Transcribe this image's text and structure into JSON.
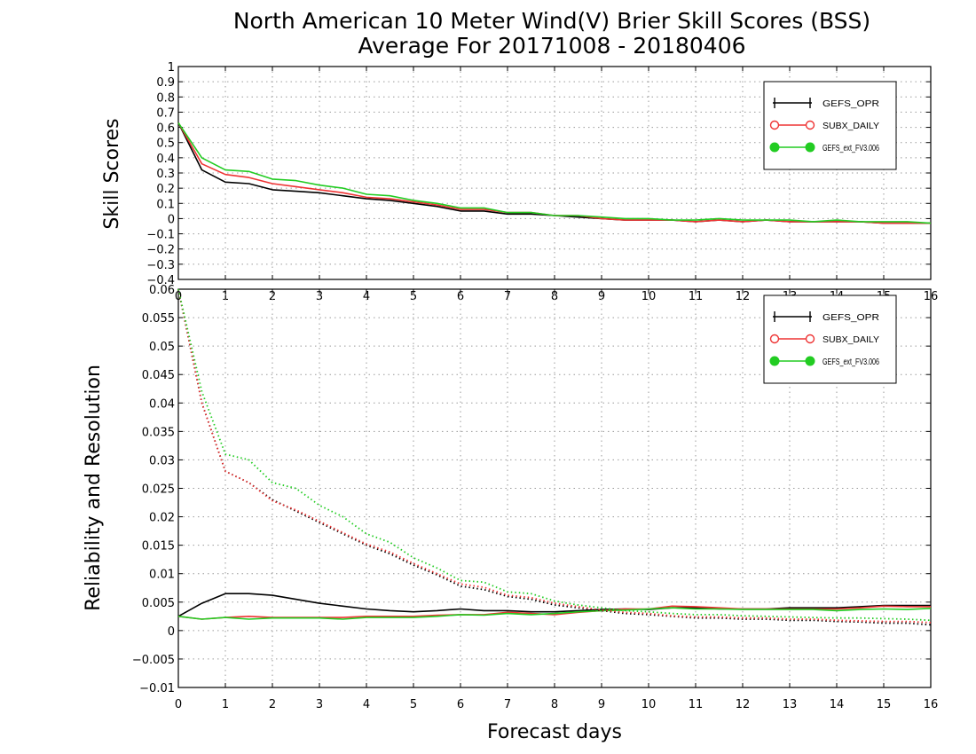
{
  "title": {
    "line1": "North American 10 Meter Wind(V) Brier Skill Scores (BSS)",
    "line2": "Average For 20171008 - 20180406"
  },
  "colors": {
    "GEFS_OPR": "#000000",
    "SUBX_DAILY": "#ee3333",
    "GEFS_ext_FV3.006": "#22cc22"
  },
  "chart_data": [
    {
      "type": "line",
      "ylabel": "Skill Scores",
      "xlim": [
        0,
        16
      ],
      "ylim": [
        -0.4,
        1
      ],
      "xticks": [
        0,
        1,
        2,
        3,
        4,
        5,
        6,
        7,
        8,
        9,
        10,
        11,
        12,
        13,
        14,
        15,
        16
      ],
      "yticks": [
        1,
        0.9,
        0.8,
        0.7,
        0.6,
        0.5,
        0.4,
        0.3,
        0.2,
        0.1,
        0,
        -0.1,
        -0.2,
        -0.3,
        -0.4
      ],
      "ytick_labels": [
        "1",
        "0.9",
        "0.8",
        "0.7",
        "0.6",
        "0.5",
        "0.4",
        "0.3",
        "0.2",
        "0.1",
        "0",
        "−0.1",
        "−0.2",
        "−0.3",
        "−0.4"
      ],
      "grid": true,
      "legend_position": "top-right",
      "x": [
        0,
        0.5,
        1,
        1.5,
        2,
        2.5,
        3,
        3.5,
        4,
        4.5,
        5,
        5.5,
        6,
        6.5,
        7,
        7.5,
        8,
        8.5,
        9,
        9.5,
        10,
        10.5,
        11,
        11.5,
        12,
        12.5,
        13,
        13.5,
        14,
        14.5,
        15,
        15.5,
        16
      ],
      "series": [
        {
          "name": "GEFS_OPR",
          "style": "solid",
          "marker": "plus",
          "values": [
            0.63,
            0.32,
            0.24,
            0.23,
            0.19,
            0.18,
            0.17,
            0.15,
            0.13,
            0.12,
            0.1,
            0.08,
            0.05,
            0.05,
            0.03,
            0.03,
            0.02,
            0.01,
            0.0,
            -0.01,
            -0.01,
            -0.01,
            -0.02,
            -0.01,
            -0.02,
            -0.01,
            -0.02,
            -0.02,
            -0.02,
            -0.02,
            -0.03,
            -0.03,
            -0.03
          ]
        },
        {
          "name": "SUBX_DAILY",
          "style": "solid",
          "marker": "circle-open",
          "values": [
            0.63,
            0.36,
            0.29,
            0.27,
            0.23,
            0.21,
            0.19,
            0.17,
            0.14,
            0.13,
            0.11,
            0.09,
            0.06,
            0.06,
            0.04,
            0.04,
            0.02,
            0.02,
            0.0,
            -0.01,
            -0.01,
            -0.01,
            -0.02,
            -0.01,
            -0.02,
            -0.01,
            -0.02,
            -0.02,
            -0.02,
            -0.02,
            -0.03,
            -0.03,
            -0.03
          ]
        },
        {
          "name": "GEFS_ext_FV3.006",
          "style": "solid",
          "marker": "circle-filled",
          "values": [
            0.63,
            0.4,
            0.32,
            0.31,
            0.26,
            0.25,
            0.22,
            0.2,
            0.16,
            0.15,
            0.12,
            0.1,
            0.07,
            0.07,
            0.04,
            0.04,
            0.02,
            0.02,
            0.01,
            0.0,
            0.0,
            -0.01,
            -0.01,
            0.0,
            -0.01,
            -0.01,
            -0.01,
            -0.02,
            -0.01,
            -0.02,
            -0.02,
            -0.02,
            -0.03
          ]
        }
      ]
    },
    {
      "type": "line",
      "ylabel": "Reliability and Resolution",
      "xlabel": "Forecast days",
      "xlim": [
        0,
        16
      ],
      "ylim": [
        -0.01,
        0.06
      ],
      "xticks": [
        0,
        1,
        2,
        3,
        4,
        5,
        6,
        7,
        8,
        9,
        10,
        11,
        12,
        13,
        14,
        15,
        16
      ],
      "yticks": [
        0.06,
        0.055,
        0.05,
        0.045,
        0.04,
        0.035,
        0.03,
        0.025,
        0.02,
        0.015,
        0.01,
        0.005,
        0,
        -0.005,
        -0.01
      ],
      "ytick_labels": [
        "0.06",
        "0.055",
        "0.05",
        "0.045",
        "0.04",
        "0.035",
        "0.03",
        "0.025",
        "0.02",
        "0.015",
        "0.01",
        "0.005",
        "0",
        "−0.005",
        "−0.01"
      ],
      "grid": true,
      "legend_position": "top-right",
      "x": [
        0,
        0.5,
        1,
        1.5,
        2,
        2.5,
        3,
        3.5,
        4,
        4.5,
        5,
        5.5,
        6,
        6.5,
        7,
        7.5,
        8,
        8.5,
        9,
        9.5,
        10,
        10.5,
        11,
        11.5,
        12,
        12.5,
        13,
        13.5,
        14,
        14.5,
        15,
        15.5,
        16
      ],
      "series": [
        {
          "name": "GEFS_OPR",
          "metric": "reliability",
          "style": "solid",
          "values": [
            0.0025,
            0.0048,
            0.0065,
            0.0065,
            0.0062,
            0.0055,
            0.0048,
            0.0043,
            0.0038,
            0.0035,
            0.0033,
            0.0035,
            0.0038,
            0.0035,
            0.0035,
            0.0033,
            0.0033,
            0.0035,
            0.0037,
            0.0038,
            0.0037,
            0.004,
            0.004,
            0.0038,
            0.0038,
            0.0038,
            0.004,
            0.004,
            0.004,
            0.0042,
            0.0044,
            0.0044,
            0.0044
          ]
        },
        {
          "name": "SUBX_DAILY",
          "metric": "reliability",
          "style": "solid",
          "values": [
            0.0025,
            0.002,
            0.0023,
            0.0025,
            0.0023,
            0.0023,
            0.0023,
            0.0023,
            0.0025,
            0.0025,
            0.0025,
            0.0027,
            0.0028,
            0.0028,
            0.0032,
            0.003,
            0.0028,
            0.0032,
            0.0035,
            0.0038,
            0.0038,
            0.0043,
            0.0042,
            0.004,
            0.0038,
            0.0038,
            0.0038,
            0.0038,
            0.0038,
            0.004,
            0.0043,
            0.0042,
            0.0042
          ]
        },
        {
          "name": "GEFS_ext_FV3.006",
          "metric": "reliability",
          "style": "solid",
          "values": [
            0.0025,
            0.002,
            0.0023,
            0.002,
            0.0022,
            0.0022,
            0.0022,
            0.002,
            0.0023,
            0.0023,
            0.0023,
            0.0025,
            0.0028,
            0.0027,
            0.003,
            0.0028,
            0.003,
            0.0033,
            0.0035,
            0.0036,
            0.0038,
            0.004,
            0.0038,
            0.0038,
            0.0037,
            0.0037,
            0.0037,
            0.0037,
            0.0035,
            0.0037,
            0.0038,
            0.0037,
            0.0039
          ]
        },
        {
          "name": "GEFS_OPR",
          "metric": "resolution",
          "style": "dotted",
          "values": [
            0.06,
            0.04,
            0.028,
            0.026,
            0.023,
            0.021,
            0.019,
            0.017,
            0.015,
            0.0135,
            0.0115,
            0.0098,
            0.0078,
            0.0072,
            0.006,
            0.0055,
            0.0045,
            0.004,
            0.0035,
            0.003,
            0.0028,
            0.0025,
            0.0022,
            0.0022,
            0.002,
            0.002,
            0.0018,
            0.0018,
            0.0016,
            0.0015,
            0.0013,
            0.0013,
            0.001
          ]
        },
        {
          "name": "SUBX_DAILY",
          "metric": "resolution",
          "style": "dotted",
          "values": [
            0.06,
            0.04,
            0.028,
            0.026,
            0.0228,
            0.0212,
            0.0192,
            0.0172,
            0.0152,
            0.0138,
            0.0118,
            0.01,
            0.0082,
            0.0076,
            0.0062,
            0.0058,
            0.0048,
            0.0042,
            0.0036,
            0.0032,
            0.003,
            0.0026,
            0.0024,
            0.0024,
            0.0022,
            0.0022,
            0.002,
            0.002,
            0.0018,
            0.0017,
            0.0016,
            0.0016,
            0.0014
          ]
        },
        {
          "name": "GEFS_ext_FV3.006",
          "metric": "resolution",
          "style": "dotted",
          "values": [
            0.06,
            0.042,
            0.031,
            0.03,
            0.026,
            0.025,
            0.022,
            0.02,
            0.017,
            0.0155,
            0.0128,
            0.011,
            0.0088,
            0.0085,
            0.0068,
            0.0065,
            0.0052,
            0.0045,
            0.004,
            0.0035,
            0.0033,
            0.003,
            0.0028,
            0.0028,
            0.0026,
            0.0025,
            0.0024,
            0.0023,
            0.0022,
            0.0022,
            0.0021,
            0.002,
            0.0018
          ]
        }
      ]
    }
  ],
  "legend": {
    "items": [
      {
        "label": "GEFS_OPR"
      },
      {
        "label": "SUBX_DAILY"
      },
      {
        "label": "GEFS_ext_FV3.006"
      }
    ]
  }
}
